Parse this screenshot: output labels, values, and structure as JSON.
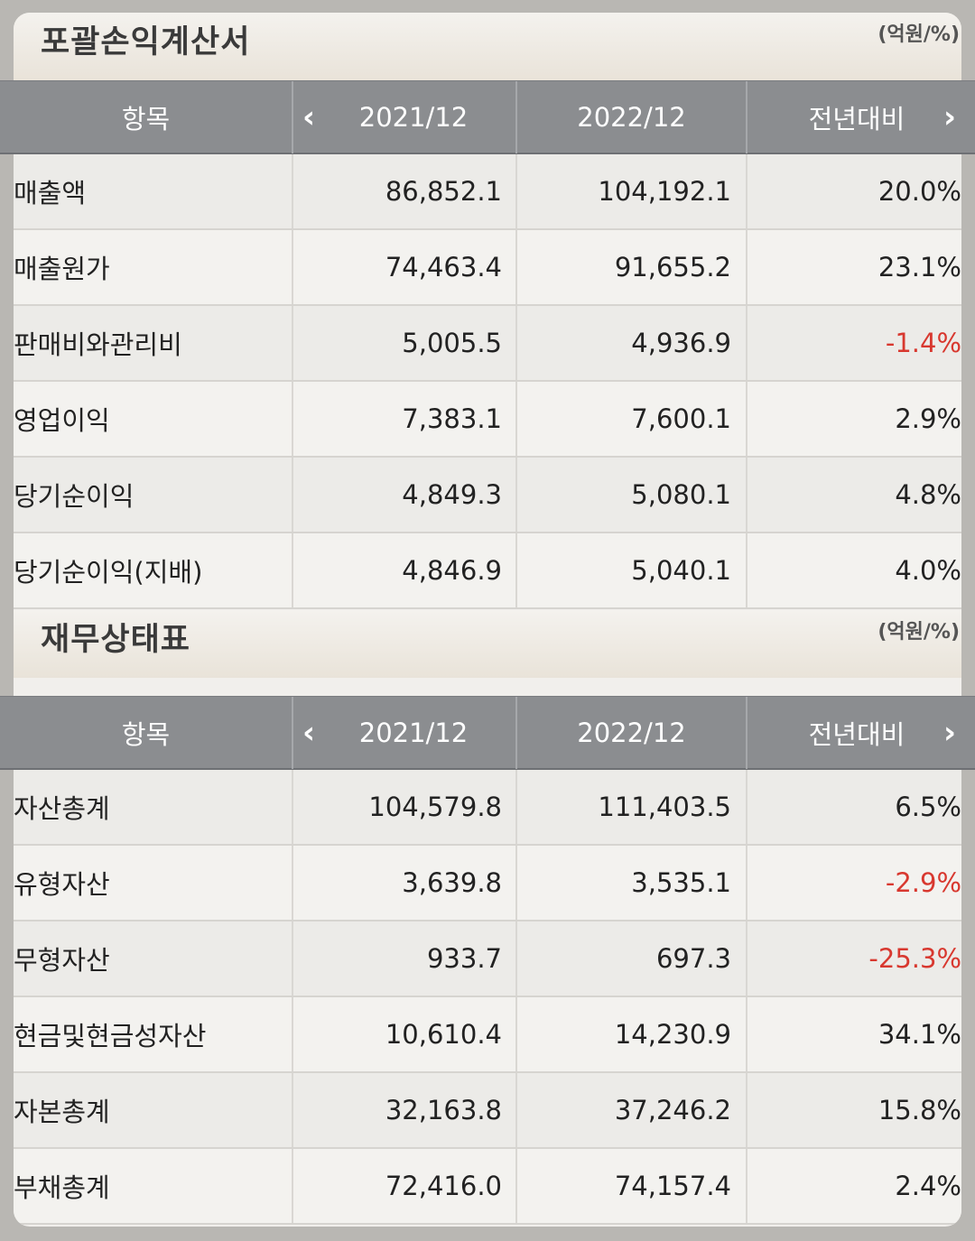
{
  "income": {
    "title": "포괄손익계산서",
    "unit": "(억원/%)",
    "header": {
      "item": "항목",
      "col1": "2021/12",
      "col2": "2022/12",
      "col3": "전년대비"
    },
    "rows": [
      {
        "name": "매출액",
        "v2021": "86,852.1",
        "v2022": "104,192.1",
        "yoy": "20.0%"
      },
      {
        "name": "매출원가",
        "v2021": "74,463.4",
        "v2022": "91,655.2",
        "yoy": "23.1%"
      },
      {
        "name": "판매비와관리비",
        "v2021": "5,005.5",
        "v2022": "4,936.9",
        "yoy": "-1.4%"
      },
      {
        "name": "영업이익",
        "v2021": "7,383.1",
        "v2022": "7,600.1",
        "yoy": "2.9%"
      },
      {
        "name": "당기순이익",
        "v2021": "4,849.3",
        "v2022": "5,080.1",
        "yoy": "4.8%"
      },
      {
        "name": "당기순이익(지배)",
        "v2021": "4,846.9",
        "v2022": "5,040.1",
        "yoy": "4.0%"
      }
    ]
  },
  "balance": {
    "title": "재무상태표",
    "unit": "(억원/%)",
    "header": {
      "item": "항목",
      "col1": "2021/12",
      "col2": "2022/12",
      "col3": "전년대비"
    },
    "rows": [
      {
        "name": "자산총계",
        "v2021": "104,579.8",
        "v2022": "111,403.5",
        "yoy": "6.5%"
      },
      {
        "name": "유형자산",
        "v2021": "3,639.8",
        "v2022": "3,535.1",
        "yoy": "-2.9%"
      },
      {
        "name": "무형자산",
        "v2021": "933.7",
        "v2022": "697.3",
        "yoy": "-25.3%"
      },
      {
        "name": "현금및현금성자산",
        "v2021": "10,610.4",
        "v2022": "14,230.9",
        "yoy": "34.1%"
      },
      {
        "name": "자본총계",
        "v2021": "32,163.8",
        "v2022": "37,246.2",
        "yoy": "15.8%"
      },
      {
        "name": "부채총계",
        "v2021": "72,416.0",
        "v2022": "74,157.4",
        "yoy": "2.4%"
      }
    ]
  },
  "icons": {
    "prev": "chevron-left-icon",
    "next": "chevron-right-icon"
  },
  "colors": {
    "negative": "#d8382f",
    "header_bg": "#8b8d90"
  }
}
